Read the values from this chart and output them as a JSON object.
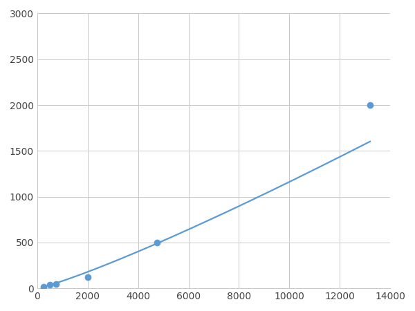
{
  "x_points": [
    250,
    500,
    750,
    2000,
    4750,
    13200
  ],
  "y_points": [
    20,
    40,
    50,
    120,
    500,
    2000
  ],
  "line_color": "#5b9bd5",
  "marker_color": "#5b9bd5",
  "marker_size": 6,
  "marker_style": "o",
  "line_width": 1.6,
  "xlim": [
    0,
    14000
  ],
  "ylim": [
    0,
    3000
  ],
  "xticks": [
    0,
    2000,
    4000,
    6000,
    8000,
    10000,
    12000,
    14000
  ],
  "yticks": [
    0,
    500,
    1000,
    1500,
    2000,
    2500,
    3000
  ],
  "grid_color": "#c8c8c8",
  "grid_linewidth": 0.7,
  "background_color": "#ffffff",
  "figsize": [
    6.0,
    4.5
  ],
  "dpi": 100
}
